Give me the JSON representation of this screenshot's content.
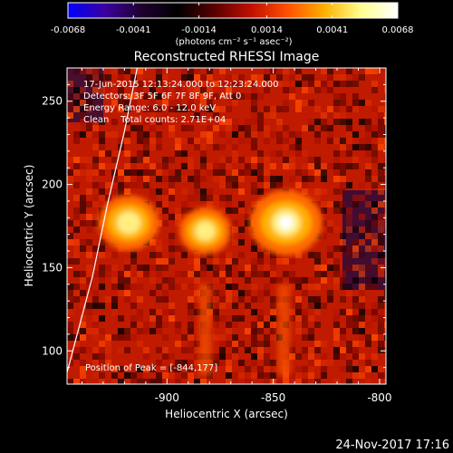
{
  "chart_data": {
    "type": "heatmap",
    "title": "Reconstructed RHESSI Image",
    "xlabel": "Heliocentric X (arcsec)",
    "ylabel": "Heliocentric Y (arcsec)",
    "xlim": [
      -947,
      -797
    ],
    "ylim": [
      80,
      270
    ],
    "x_ticks": [
      -900,
      -850,
      -800
    ],
    "x_tick_labels": [
      "-900",
      "-850",
      "-800"
    ],
    "y_ticks": [
      100,
      150,
      200,
      250
    ],
    "y_tick_labels": [
      "100",
      "150",
      "200",
      "250"
    ],
    "colorbar": {
      "min": -0.0068,
      "max": 0.0068,
      "ticks": [
        -0.0068,
        -0.0041,
        -0.0014,
        0.0014,
        0.0041,
        0.0068
      ],
      "tick_labels": [
        "-0.0068",
        "-0.0041",
        "-0.0014",
        "0.0014",
        "0.0041",
        "0.0068"
      ],
      "unit_label": "(photons cm⁻² s⁻¹ asec⁻²)",
      "colormap": [
        "#0000ff",
        "#3b00a0",
        "#200030",
        "#000000",
        "#5a0000",
        "#c01000",
        "#ff5000",
        "#ffb000",
        "#ffff90",
        "#ffffff"
      ]
    },
    "annotations": [
      "17-Jun-2015 12:13:24.000 to 12:23:24.000",
      "Detectors: 3F 5F 6F 7F 8F 9F, Att 0",
      "Energy Range: 6.0 - 12.0 keV",
      "Clean    Total counts: 2.71E+04"
    ],
    "peak_label": "Position of Peak = [-844,177]",
    "sources": [
      {
        "x": -918,
        "y": 177,
        "intensity": 0.0055
      },
      {
        "x": -882,
        "y": 172,
        "intensity": 0.0045
      },
      {
        "x": -844,
        "y": 177,
        "intensity": 0.0068
      }
    ],
    "limb_curve": [
      {
        "x": -947,
        "y": 87
      },
      {
        "x": -935,
        "y": 145
      },
      {
        "x": -928,
        "y": 188
      },
      {
        "x": -920,
        "y": 232
      },
      {
        "x": -914,
        "y": 270
      }
    ],
    "grid": false
  },
  "footer": {
    "timestamp": "24-Nov-2017 17:16"
  }
}
